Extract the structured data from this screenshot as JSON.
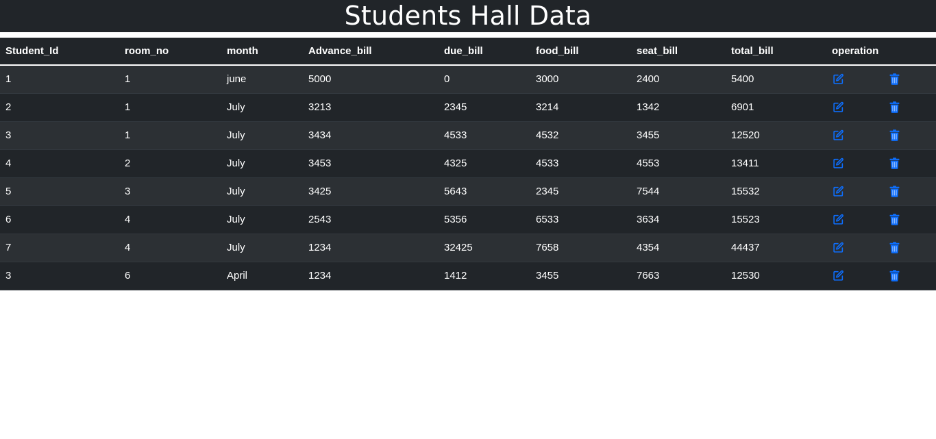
{
  "page": {
    "title": "Students Hall Data"
  },
  "colors": {
    "background_dark": "#212529",
    "row_striped": "#2c3034",
    "icon_accent": "#0d6efd",
    "text": "#ffffff"
  },
  "table": {
    "headers": [
      "Student_Id",
      "room_no",
      "month",
      "Advance_bill",
      "due_bill",
      "food_bill",
      "seat_bill",
      "total_bill",
      "operation"
    ],
    "rows": [
      [
        "1",
        "1",
        "june",
        "5000",
        "0",
        "3000",
        "2400",
        "5400"
      ],
      [
        "2",
        "1",
        "July",
        "3213",
        "2345",
        "3214",
        "1342",
        "6901"
      ],
      [
        "3",
        "1",
        "July",
        "3434",
        "4533",
        "4532",
        "3455",
        "12520"
      ],
      [
        "4",
        "2",
        "July",
        "3453",
        "4325",
        "4533",
        "4553",
        "13411"
      ],
      [
        "5",
        "3",
        "July",
        "3425",
        "5643",
        "2345",
        "7544",
        "15532"
      ],
      [
        "6",
        "4",
        "July",
        "2543",
        "5356",
        "6533",
        "3634",
        "15523"
      ],
      [
        "7",
        "4",
        "July",
        "1234",
        "32425",
        "7658",
        "4354",
        "44437"
      ],
      [
        "3",
        "6",
        "April",
        "1234",
        "1412",
        "3455",
        "7663",
        "12530"
      ]
    ],
    "operation_icons": {
      "edit": "edit-icon",
      "delete": "trash-icon"
    }
  }
}
